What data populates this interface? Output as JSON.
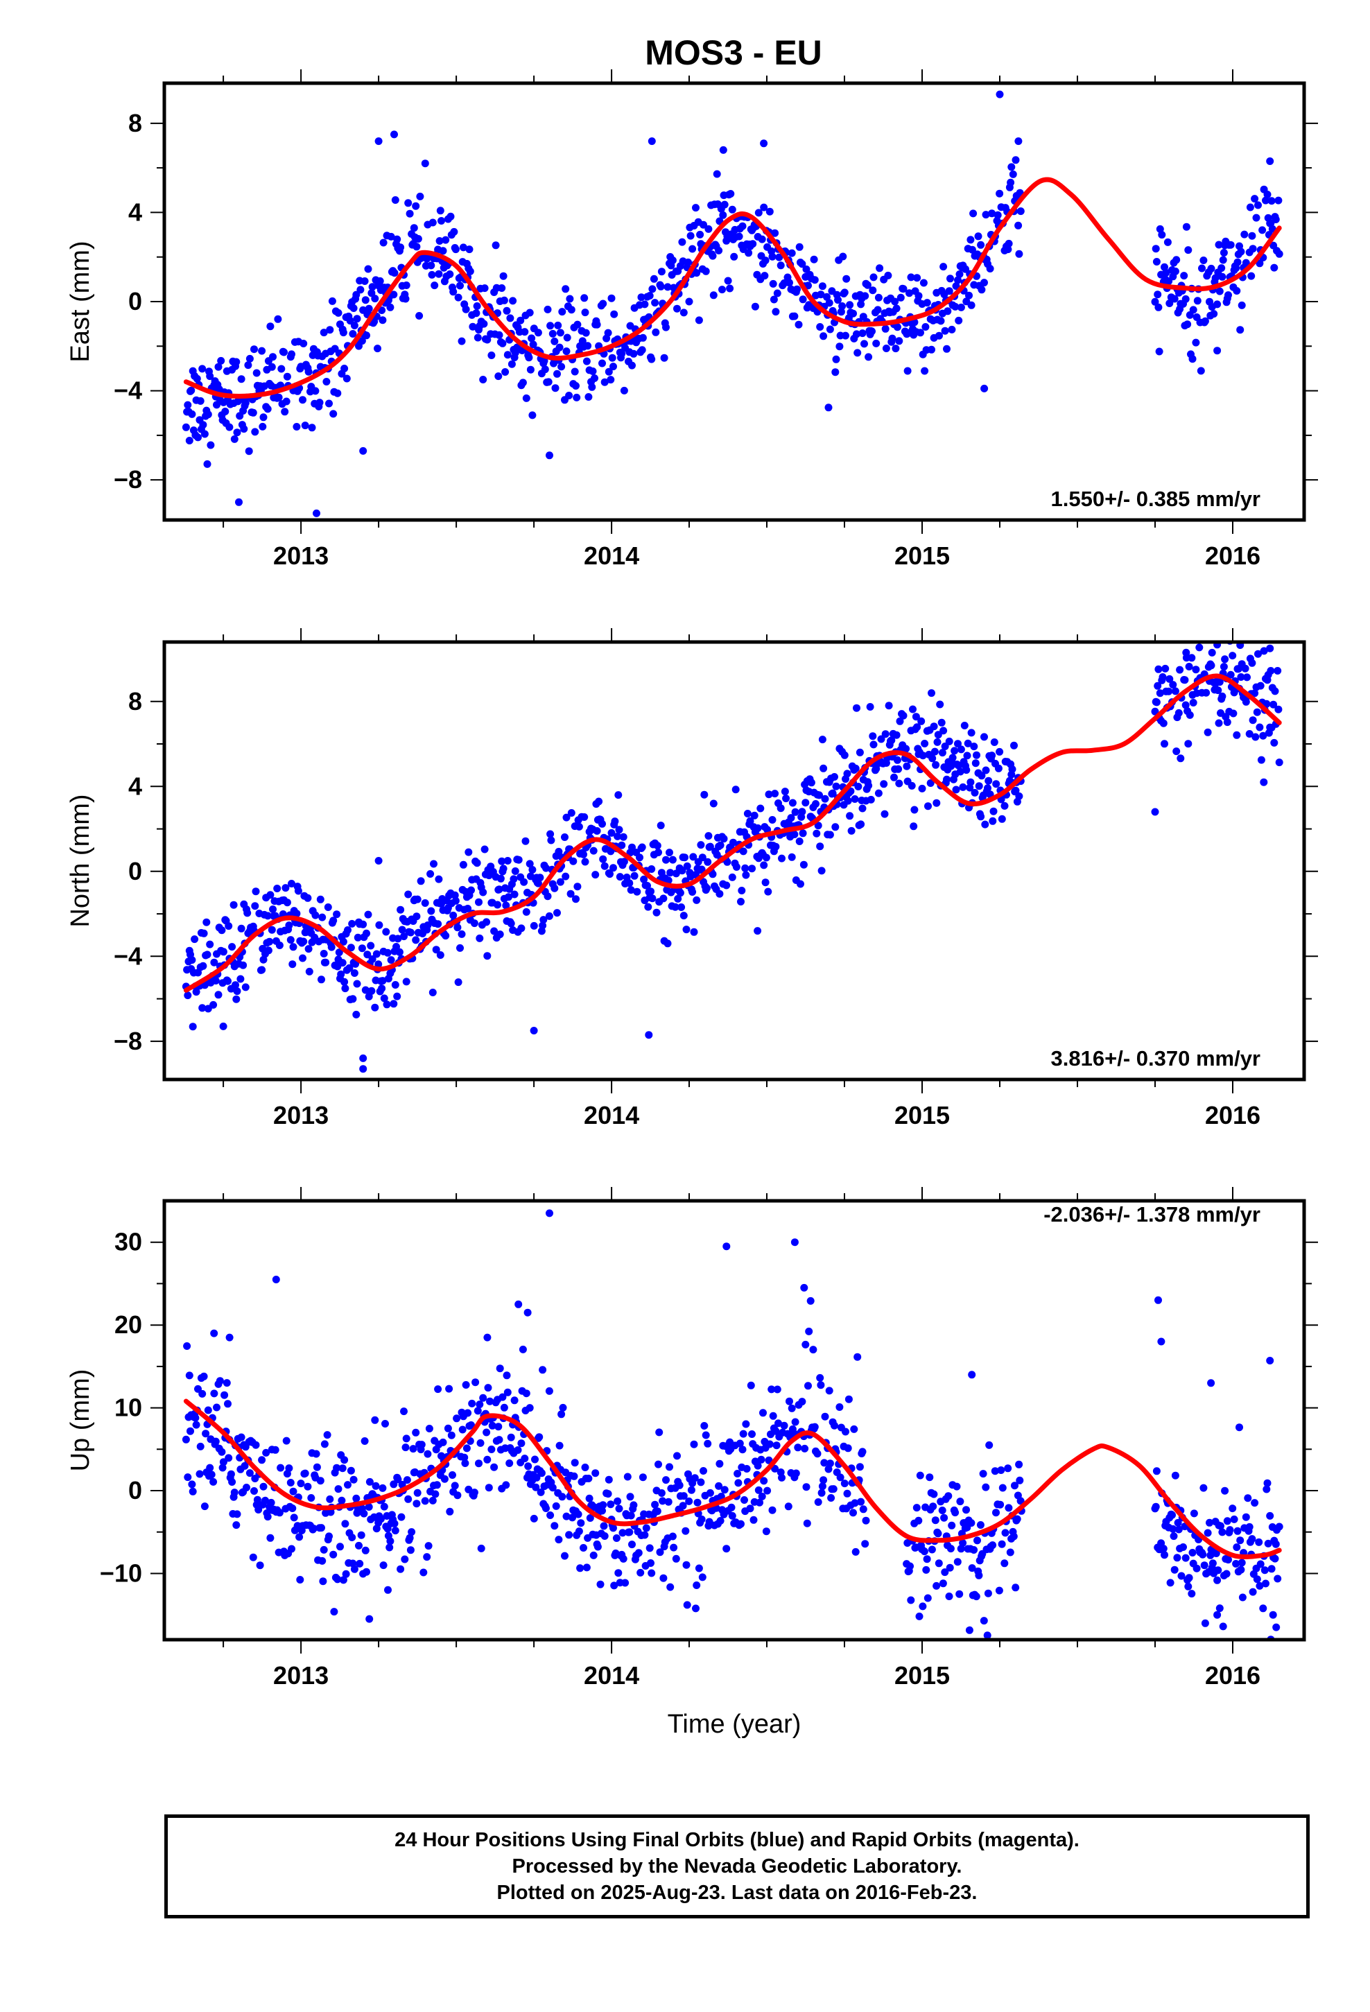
{
  "figure": {
    "title": "MOS3 - EU"
  },
  "colors": {
    "points": "#0000ff",
    "fit": "#ff0000",
    "frame": "#000000"
  },
  "footer": {
    "line1": "24 Hour Positions Using Final Orbits (blue) and Rapid Orbits (magenta).",
    "line2": "Processed by the Nevada Geodetic Laboratory.",
    "line3": "Plotted on 2025-Aug-23. Last data on 2016-Feb-23."
  },
  "chart_data": [
    {
      "type": "scatter",
      "title": "MOS3 - EU",
      "xlabel": "",
      "ylabel": "East (mm)",
      "xlim": [
        2012.56,
        2016.23
      ],
      "ylim": [
        -9.8,
        9.8
      ],
      "x_ticks": [
        2013,
        2014,
        2015,
        2016
      ],
      "y_ticks": [
        -8,
        -4,
        0,
        4,
        8
      ],
      "y_tick_labels": [
        "−8",
        "−4",
        "0",
        "4",
        "8"
      ],
      "rate_label": "1.550+/- 0.385 mm/yr",
      "series": [
        {
          "kind": "points",
          "segments": [
            [
              2012.63,
              2015.32
            ],
            [
              2015.75,
              2016.15
            ]
          ],
          "keys": [
            [
              2012.63,
              -4.5
            ],
            [
              2012.85,
              -4.2
            ],
            [
              2013.0,
              -3.2
            ],
            [
              2013.1,
              -2.6
            ],
            [
              2013.2,
              -0.5
            ],
            [
              2013.3,
              1.2
            ],
            [
              2013.36,
              2.2
            ],
            [
              2013.45,
              2.1
            ],
            [
              2013.55,
              0.3
            ],
            [
              2013.65,
              -1.4
            ],
            [
              2013.78,
              -2.5
            ],
            [
              2013.95,
              -2.2
            ],
            [
              2014.05,
              -1.7
            ],
            [
              2014.15,
              -0.5
            ],
            [
              2014.25,
              1.5
            ],
            [
              2014.35,
              3.3
            ],
            [
              2014.42,
              3.5
            ],
            [
              2014.5,
              2.4
            ],
            [
              2014.58,
              1.3
            ],
            [
              2014.65,
              0.3
            ],
            [
              2014.75,
              -1.0
            ],
            [
              2014.82,
              -1.1
            ],
            [
              2015.0,
              -1.0
            ],
            [
              2015.1,
              0.0
            ],
            [
              2015.2,
              2.5
            ],
            [
              2015.3,
              4.3
            ],
            [
              2015.75,
              1.0
            ],
            [
              2015.9,
              0.6
            ],
            [
              2016.05,
              2.0
            ],
            [
              2016.15,
              3.8
            ]
          ],
          "spread": 1.1,
          "outliers": [
            [
              2013.05,
              -9.5
            ],
            [
              2013.3,
              7.5
            ],
            [
              2013.25,
              7.2
            ],
            [
              2013.4,
              6.2
            ],
            [
              2014.13,
              7.2
            ],
            [
              2014.36,
              6.8
            ],
            [
              2014.49,
              7.1
            ],
            [
              2015.25,
              9.3
            ],
            [
              2015.31,
              7.2
            ],
            [
              2013.8,
              -6.9
            ],
            [
              2013.2,
              -6.7
            ],
            [
              2012.8,
              -9.0
            ],
            [
              2015.2,
              -3.9
            ],
            [
              2015.95,
              -2.2
            ],
            [
              2014.25,
              0.0
            ],
            [
              2016.12,
              6.3
            ]
          ]
        },
        {
          "kind": "fit",
          "x": [
            2012.63,
            2012.75,
            2012.9,
            2013.05,
            2013.15,
            2013.25,
            2013.35,
            2013.4,
            2013.5,
            2013.6,
            2013.7,
            2013.8,
            2013.9,
            2014.0,
            2014.1,
            2014.2,
            2014.3,
            2014.38,
            2014.45,
            2014.55,
            2014.65,
            2014.75,
            2014.85,
            2014.95,
            2015.05,
            2015.15,
            2015.25,
            2015.38,
            2015.48,
            2015.6,
            2015.72,
            2015.85,
            2015.95,
            2016.05,
            2016.15
          ],
          "y": [
            -3.6,
            -4.2,
            -4.1,
            -3.3,
            -2.2,
            -0.2,
            1.7,
            2.2,
            1.6,
            -0.3,
            -1.8,
            -2.5,
            -2.4,
            -2.0,
            -1.2,
            0.2,
            2.4,
            3.7,
            3.8,
            2.2,
            0.0,
            -0.9,
            -1.0,
            -0.8,
            -0.3,
            1.0,
            3.3,
            5.4,
            4.8,
            2.8,
            1.0,
            0.6,
            0.7,
            1.5,
            3.3
          ]
        }
      ]
    },
    {
      "type": "scatter",
      "xlabel": "",
      "ylabel": "North (mm)",
      "xlim": [
        2012.56,
        2016.23
      ],
      "ylim": [
        -9.8,
        10.8
      ],
      "x_ticks": [
        2013,
        2014,
        2015,
        2016
      ],
      "y_ticks": [
        -8,
        -4,
        0,
        4,
        8
      ],
      "y_tick_labels": [
        "−8",
        "−4",
        "0",
        "4",
        "8"
      ],
      "rate_label": "3.816+/- 0.370 mm/yr",
      "series": [
        {
          "kind": "points",
          "segments": [
            [
              2012.63,
              2015.32
            ],
            [
              2015.75,
              2016.15
            ]
          ],
          "keys": [
            [
              2012.63,
              -5.5
            ],
            [
              2012.75,
              -4.3
            ],
            [
              2012.85,
              -2.5
            ],
            [
              2012.95,
              -2.2
            ],
            [
              2013.05,
              -3.0
            ],
            [
              2013.15,
              -4.2
            ],
            [
              2013.25,
              -4.5
            ],
            [
              2013.35,
              -3.3
            ],
            [
              2013.45,
              -2.1
            ],
            [
              2013.55,
              -1.5
            ],
            [
              2013.65,
              -0.7
            ],
            [
              2013.75,
              -1.5
            ],
            [
              2013.82,
              0.2
            ],
            [
              2013.92,
              1.6
            ],
            [
              2014.0,
              1.2
            ],
            [
              2014.08,
              0.3
            ],
            [
              2014.15,
              -0.9
            ],
            [
              2014.25,
              -0.5
            ],
            [
              2014.35,
              0.4
            ],
            [
              2014.45,
              1.6
            ],
            [
              2014.55,
              1.9
            ],
            [
              2014.65,
              2.6
            ],
            [
              2014.75,
              4.0
            ],
            [
              2014.85,
              5.1
            ],
            [
              2014.95,
              5.6
            ],
            [
              2015.05,
              5.5
            ],
            [
              2015.15,
              4.6
            ],
            [
              2015.25,
              3.9
            ],
            [
              2015.32,
              4.2
            ],
            [
              2015.75,
              7.8
            ],
            [
              2015.9,
              8.4
            ],
            [
              2016.0,
              8.6
            ],
            [
              2016.1,
              7.5
            ],
            [
              2016.15,
              7.2
            ]
          ],
          "spread": 1.1,
          "outliers": [
            [
              2013.2,
              -9.3
            ],
            [
              2013.2,
              -8.8
            ],
            [
              2013.75,
              -7.5
            ],
            [
              2014.12,
              -7.7
            ],
            [
              2015.75,
              2.8
            ],
            [
              2016.12,
              10.5
            ],
            [
              2016.1,
              4.2
            ],
            [
              2015.85,
              10.3
            ],
            [
              2013.25,
              0.5
            ],
            [
              2012.75,
              -7.3
            ],
            [
              2014.47,
              -2.8
            ]
          ]
        },
        {
          "kind": "fit",
          "x": [
            2012.63,
            2012.75,
            2012.85,
            2012.95,
            2013.05,
            2013.15,
            2013.25,
            2013.35,
            2013.45,
            2013.55,
            2013.65,
            2013.75,
            2013.85,
            2013.95,
            2014.05,
            2014.15,
            2014.25,
            2014.35,
            2014.45,
            2014.55,
            2014.65,
            2014.75,
            2014.85,
            2014.95,
            2015.05,
            2015.15,
            2015.25,
            2015.35,
            2015.45,
            2015.55,
            2015.65,
            2015.75,
            2015.85,
            2015.95,
            2016.05,
            2016.15
          ],
          "y": [
            -5.6,
            -4.5,
            -3.0,
            -2.2,
            -2.6,
            -3.8,
            -4.6,
            -4.0,
            -2.8,
            -2.0,
            -1.9,
            -1.2,
            0.6,
            1.5,
            0.7,
            -0.5,
            -0.6,
            0.5,
            1.5,
            1.9,
            2.3,
            3.8,
            5.3,
            5.5,
            4.2,
            3.2,
            3.6,
            4.8,
            5.6,
            5.7,
            6.0,
            7.2,
            8.5,
            9.2,
            8.3,
            7.0
          ]
        }
      ]
    },
    {
      "type": "scatter",
      "xlabel": "Time (year)",
      "ylabel": "Up (mm)",
      "xlim": [
        2012.56,
        2016.23
      ],
      "ylim": [
        -18,
        35
      ],
      "x_ticks": [
        2013,
        2014,
        2015,
        2016
      ],
      "y_ticks": [
        -10,
        0,
        10,
        20,
        30
      ],
      "y_tick_labels": [
        "−10",
        "0",
        "10",
        "20",
        "30"
      ],
      "rate_label": "-2.036+/- 1.378 mm/yr",
      "series": [
        {
          "kind": "points",
          "segments": [
            [
              2012.63,
              2014.82
            ],
            [
              2014.95,
              2015.32
            ],
            [
              2015.75,
              2016.15
            ]
          ],
          "keys": [
            [
              2012.63,
              9.0
            ],
            [
              2012.75,
              5.0
            ],
            [
              2012.85,
              2.0
            ],
            [
              2012.95,
              -2.0
            ],
            [
              2013.1,
              -3.5
            ],
            [
              2013.25,
              -3.0
            ],
            [
              2013.35,
              -0.5
            ],
            [
              2013.5,
              4.0
            ],
            [
              2013.6,
              8.0
            ],
            [
              2013.7,
              7.0
            ],
            [
              2013.8,
              2.0
            ],
            [
              2013.9,
              -3.5
            ],
            [
              2014.0,
              -5.5
            ],
            [
              2014.1,
              -4.0
            ],
            [
              2014.25,
              -2.0
            ],
            [
              2014.4,
              1.0
            ],
            [
              2014.55,
              5.5
            ],
            [
              2014.62,
              7.5
            ],
            [
              2014.7,
              5.0
            ],
            [
              2014.82,
              0.0
            ],
            [
              2014.95,
              -7.0
            ],
            [
              2015.1,
              -5.0
            ],
            [
              2015.25,
              -5.0
            ],
            [
              2015.32,
              -3.0
            ],
            [
              2015.75,
              -3.0
            ],
            [
              2015.9,
              -7.0
            ],
            [
              2016.05,
              -7.5
            ],
            [
              2016.15,
              -7.0
            ]
          ],
          "spread": 4.2,
          "outliers": [
            [
              2013.8,
              33.5
            ],
            [
              2014.37,
              29.5
            ],
            [
              2014.59,
              30.0
            ],
            [
              2012.92,
              25.5
            ],
            [
              2013.7,
              22.5
            ],
            [
              2013.73,
              21.5
            ],
            [
              2014.62,
              24.5
            ],
            [
              2015.76,
              23.0
            ],
            [
              2015.77,
              18.0
            ],
            [
              2013.6,
              18.5
            ],
            [
              2016.12,
              15.7
            ],
            [
              2016.14,
              -16.5
            ],
            [
              2016.13,
              -15.0
            ],
            [
              2013.22,
              -15.5
            ],
            [
              2013.28,
              -12.0
            ],
            [
              2015.95,
              -15.0
            ],
            [
              2015.16,
              14.0
            ],
            [
              2015.93,
              13.0
            ],
            [
              2012.72,
              19.0
            ],
            [
              2012.77,
              18.5
            ]
          ]
        },
        {
          "kind": "fit",
          "x": [
            2012.63,
            2012.75,
            2012.85,
            2012.95,
            2013.05,
            2013.15,
            2013.25,
            2013.35,
            2013.45,
            2013.55,
            2013.6,
            2013.7,
            2013.8,
            2013.9,
            2014.0,
            2014.1,
            2014.2,
            2014.3,
            2014.4,
            2014.5,
            2014.58,
            2014.65,
            2014.75,
            2014.85,
            2014.95,
            2015.05,
            2015.15,
            2015.25,
            2015.35,
            2015.45,
            2015.55,
            2015.6,
            2015.7,
            2015.8,
            2015.9,
            2016.0,
            2016.1,
            2016.15
          ],
          "y": [
            10.8,
            7.0,
            2.8,
            -0.5,
            -2.0,
            -1.8,
            -1.0,
            0.5,
            3.0,
            7.0,
            9.0,
            8.0,
            3.5,
            -1.5,
            -3.8,
            -3.8,
            -3.0,
            -2.0,
            -0.5,
            2.5,
            6.0,
            6.8,
            3.0,
            -2.0,
            -5.5,
            -6.0,
            -5.5,
            -4.0,
            -1.0,
            2.5,
            5.0,
            5.2,
            3.0,
            -1.5,
            -5.5,
            -7.8,
            -7.8,
            -7.2
          ]
        }
      ]
    }
  ]
}
